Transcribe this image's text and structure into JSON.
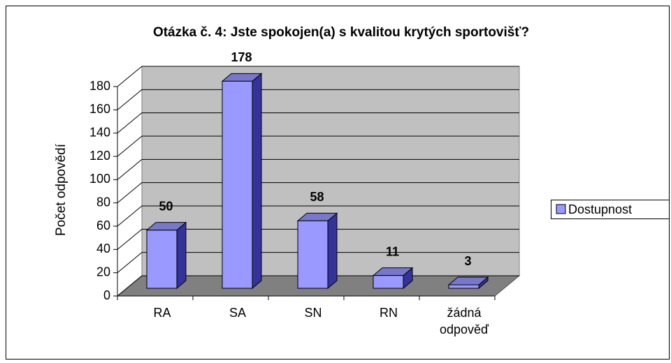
{
  "chart_data": {
    "type": "bar3d",
    "title": "Otázka č. 4: Jste spokojen(a) s kvalitou krytých sportovišť?",
    "y_label": "Počet odpovědí",
    "categories": [
      "RA",
      "SA",
      "SN",
      "RN",
      "žádná odpověď"
    ],
    "series": [
      {
        "name": "Dostupnost",
        "color": "#9999ff",
        "values": [
          50,
          178,
          58,
          11,
          3
        ]
      }
    ],
    "ylim": [
      0,
      180
    ],
    "yticks": [
      0,
      20,
      40,
      60,
      80,
      100,
      120,
      140,
      160,
      180
    ],
    "grid": true,
    "legend": "right",
    "data_labels": true
  }
}
